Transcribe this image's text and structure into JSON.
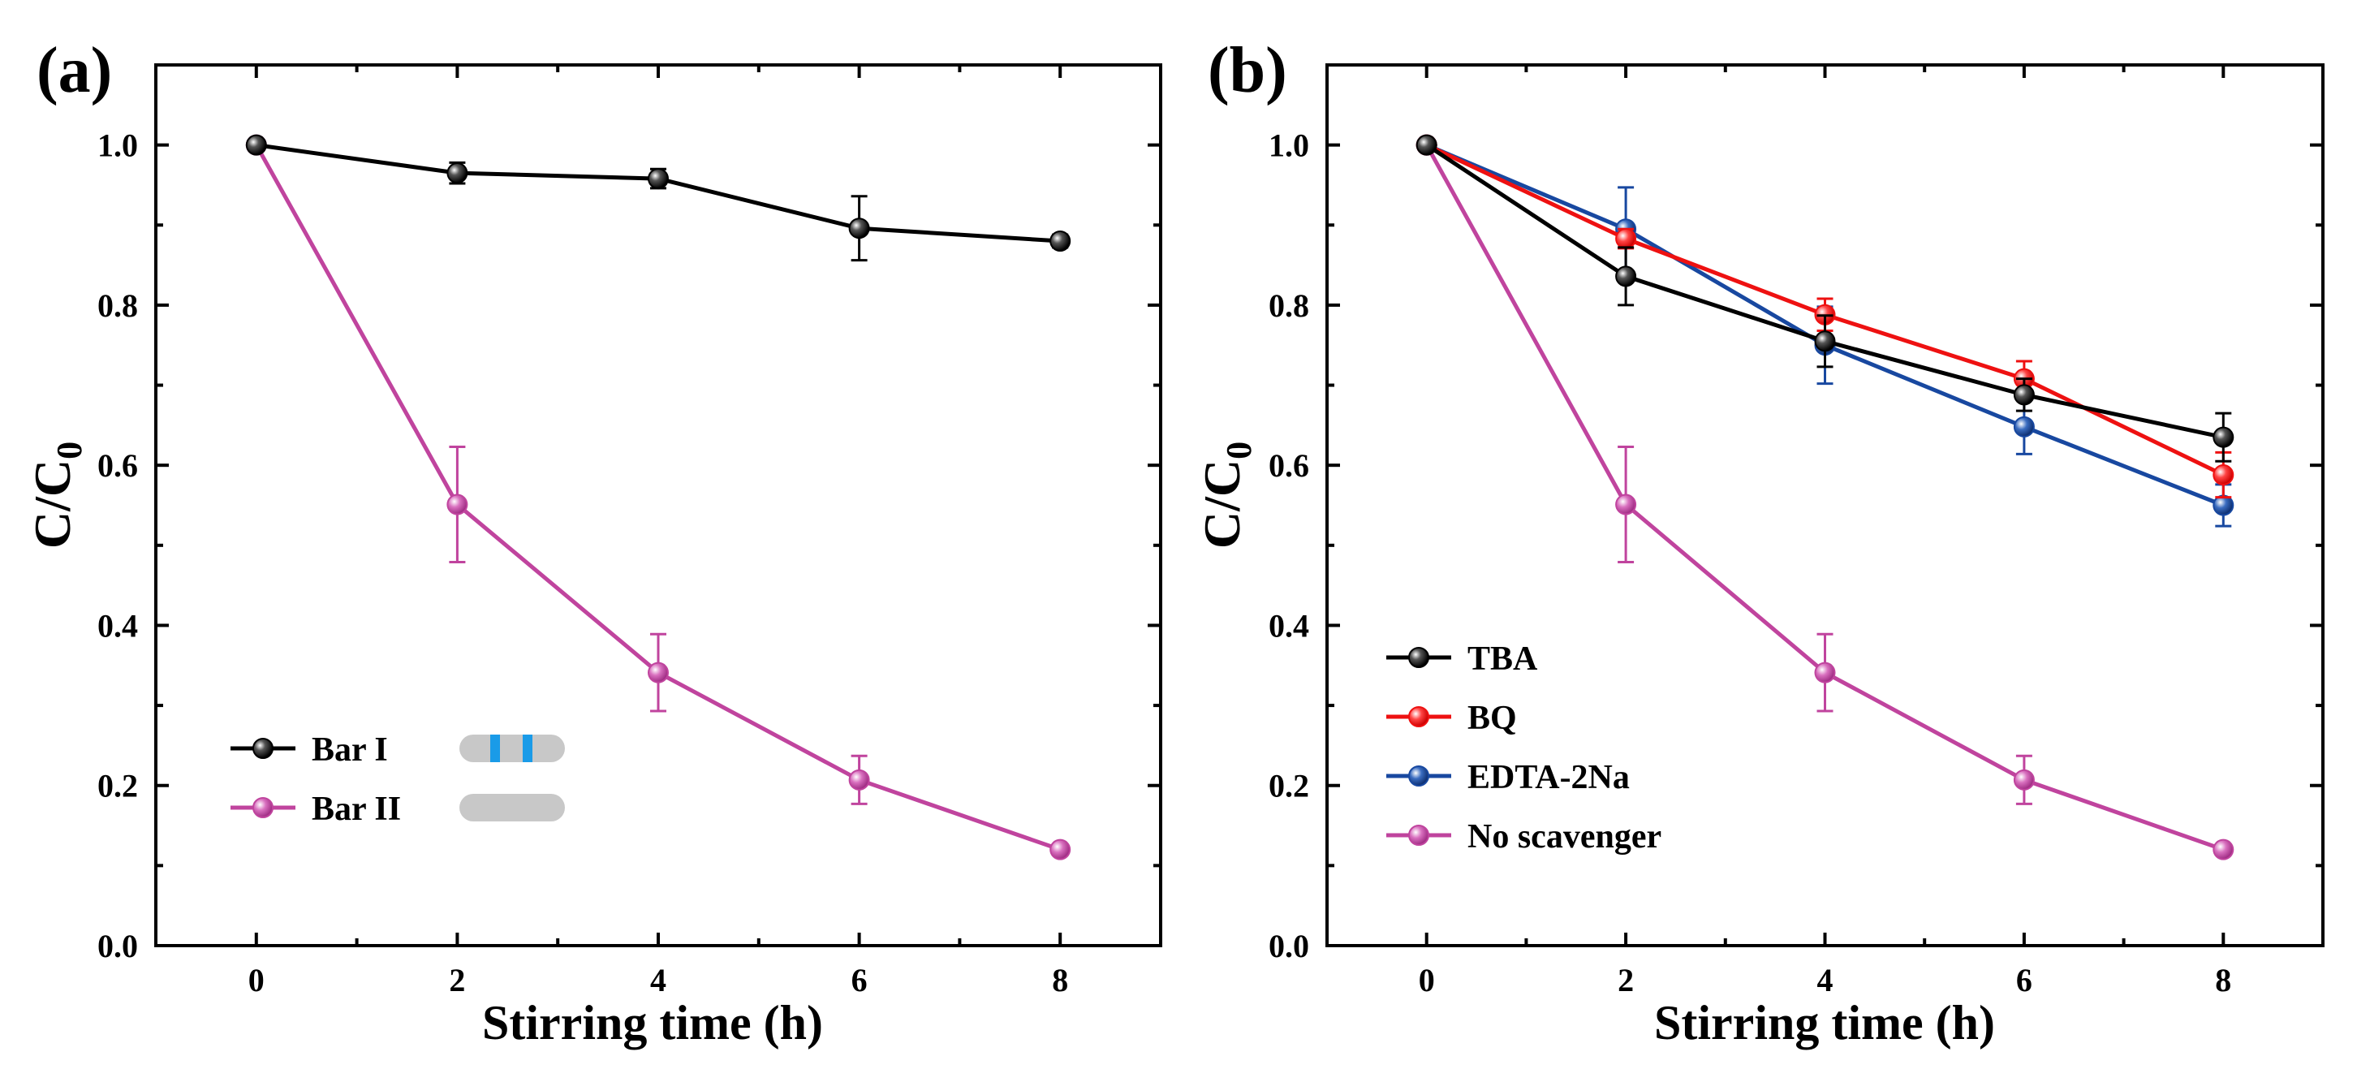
{
  "colors": {
    "black": "#000000",
    "magenta": "#c0449e",
    "red": "#ee1111",
    "blue": "#1848a0",
    "gray": "#c8c8c8",
    "stripe": "#1a9be8"
  },
  "chart_data": [
    {
      "panel": "(a)",
      "type": "line",
      "xlabel": "Stirring time (h)",
      "ylabel_main": "C/C",
      "ylabel_sub": "0",
      "xlim": [
        -1,
        9
      ],
      "ylim": [
        0.0,
        1.1
      ],
      "xticks": [
        0,
        2,
        4,
        6,
        8
      ],
      "yticks": [
        0.0,
        0.2,
        0.4,
        0.6,
        0.8,
        1.0
      ],
      "xtick_labels": [
        "0",
        "2",
        "4",
        "6",
        "8"
      ],
      "ytick_labels": [
        "0.0",
        "0.2",
        "0.4",
        "0.6",
        "0.8",
        "1.0"
      ],
      "legend_position": "lower-left",
      "series": [
        {
          "name": "Bar I",
          "color_key": "black",
          "x": [
            0,
            2,
            4,
            6,
            8
          ],
          "y": [
            1.0,
            0.965,
            0.958,
            0.896,
            0.88
          ],
          "err": [
            0,
            0.013,
            0.012,
            0.04,
            0.008
          ],
          "swatch": "striped"
        },
        {
          "name": "Bar II",
          "color_key": "magenta",
          "x": [
            0,
            2,
            4,
            6,
            8
          ],
          "y": [
            1.0,
            0.551,
            0.341,
            0.207,
            0.12
          ],
          "err": [
            0,
            0.072,
            0.048,
            0.03,
            0.006
          ],
          "swatch": "plain"
        }
      ]
    },
    {
      "panel": "(b)",
      "type": "line",
      "xlabel": "Stirring time (h)",
      "ylabel_main": "C/C",
      "ylabel_sub": "0",
      "xlim": [
        -1,
        9
      ],
      "ylim": [
        0.0,
        1.1
      ],
      "xticks": [
        0,
        2,
        4,
        6,
        8
      ],
      "yticks": [
        0.0,
        0.2,
        0.4,
        0.6,
        0.8,
        1.0
      ],
      "xtick_labels": [
        "0",
        "2",
        "4",
        "6",
        "8"
      ],
      "ytick_labels": [
        "0.0",
        "0.2",
        "0.4",
        "0.6",
        "0.8",
        "1.0"
      ],
      "legend_position": "lower-left",
      "series": [
        {
          "name": "TBA",
          "color_key": "black",
          "x": [
            0,
            2,
            4,
            6,
            8
          ],
          "y": [
            1.0,
            0.836,
            0.755,
            0.688,
            0.635
          ],
          "err": [
            0,
            0.036,
            0.032,
            0.02,
            0.03
          ]
        },
        {
          "name": "BQ",
          "color_key": "red",
          "x": [
            0,
            2,
            4,
            6,
            8
          ],
          "y": [
            1.0,
            0.883,
            0.788,
            0.708,
            0.588
          ],
          "err": [
            0,
            0.012,
            0.02,
            0.022,
            0.028
          ]
        },
        {
          "name": "EDTA-2Na",
          "color_key": "blue",
          "x": [
            0,
            2,
            4,
            6,
            8
          ],
          "y": [
            1.0,
            0.895,
            0.75,
            0.648,
            0.55
          ],
          "err": [
            0,
            0.052,
            0.048,
            0.034,
            0.026
          ]
        },
        {
          "name": "No scavenger",
          "color_key": "magenta",
          "x": [
            0,
            2,
            4,
            6,
            8
          ],
          "y": [
            1.0,
            0.551,
            0.341,
            0.207,
            0.12
          ],
          "err": [
            0,
            0.072,
            0.048,
            0.03,
            0.006
          ]
        }
      ]
    }
  ]
}
